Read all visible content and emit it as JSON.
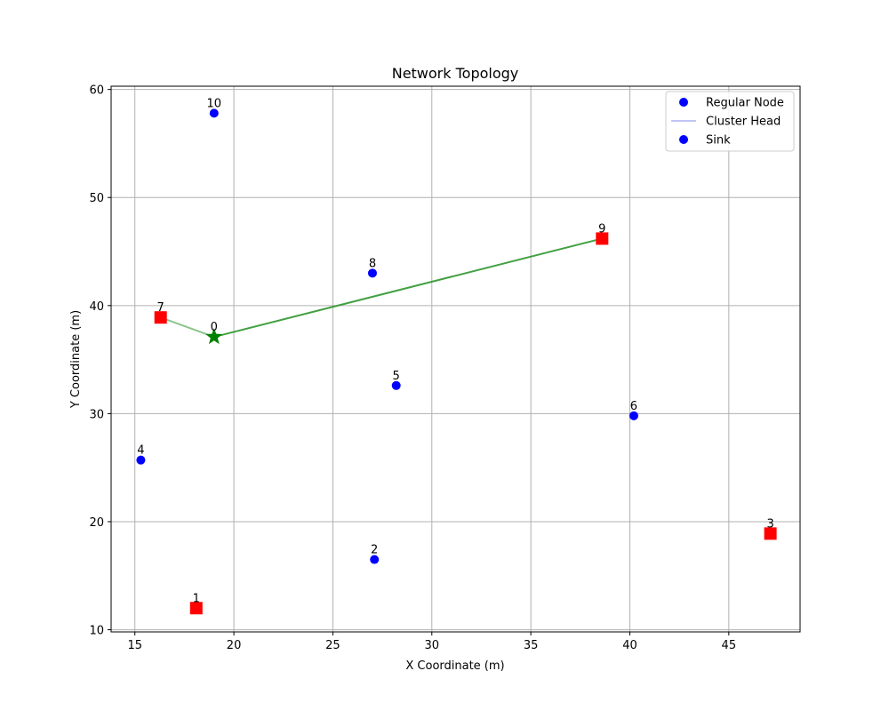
{
  "chart_data": {
    "type": "scatter",
    "title": "Network Topology",
    "xlabel": "X Coordinate (m)",
    "ylabel": "Y Coordinate (m)",
    "xlim": [
      13.8,
      48.6
    ],
    "ylim": [
      9.8,
      60.3
    ],
    "xticks": [
      15,
      20,
      25,
      30,
      35,
      40,
      45
    ],
    "yticks": [
      10,
      20,
      30,
      40,
      50,
      60
    ],
    "grid": true,
    "legend": {
      "placement": "top-right",
      "entries": [
        {
          "label": "Regular Node",
          "marker": "circle",
          "color": "#0000ff"
        },
        {
          "label": "Cluster Head",
          "marker": "line",
          "color": "#aab4f2"
        },
        {
          "label": "Sink",
          "marker": "circle",
          "color": "#0000ff"
        }
      ]
    },
    "colors": {
      "regular": "#0000ff",
      "cluster_head": "#ff0000",
      "sink": "#008000",
      "link": "#2e962e"
    },
    "nodes": [
      {
        "id": "0",
        "x": 19.0,
        "y": 37.1,
        "role": "sink"
      },
      {
        "id": "1",
        "x": 18.1,
        "y": 12.0,
        "role": "cluster_head"
      },
      {
        "id": "2",
        "x": 27.1,
        "y": 16.5,
        "role": "regular"
      },
      {
        "id": "3",
        "x": 47.1,
        "y": 18.9,
        "role": "cluster_head"
      },
      {
        "id": "4",
        "x": 15.3,
        "y": 25.7,
        "role": "regular"
      },
      {
        "id": "5",
        "x": 28.2,
        "y": 32.6,
        "role": "regular"
      },
      {
        "id": "6",
        "x": 40.2,
        "y": 29.8,
        "role": "regular"
      },
      {
        "id": "7",
        "x": 16.3,
        "y": 38.9,
        "role": "cluster_head"
      },
      {
        "id": "8",
        "x": 27.0,
        "y": 43.0,
        "role": "regular"
      },
      {
        "id": "9",
        "x": 38.6,
        "y": 46.2,
        "role": "cluster_head"
      },
      {
        "id": "10",
        "x": 19.0,
        "y": 57.8,
        "role": "regular"
      }
    ],
    "links": [
      {
        "from": "7",
        "to": "0",
        "opacity": 0.55
      },
      {
        "from": "9",
        "to": "0",
        "opacity": 0.9
      }
    ]
  }
}
